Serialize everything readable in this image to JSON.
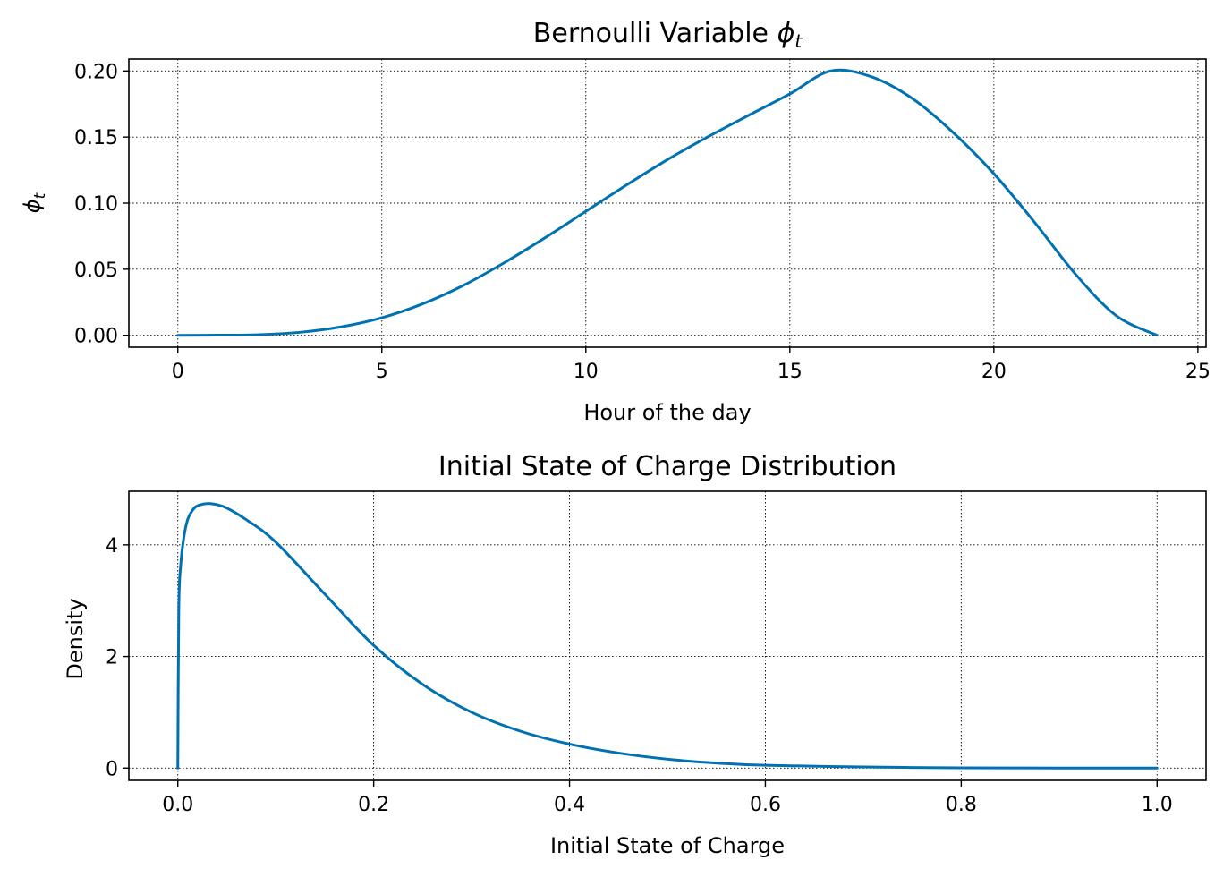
{
  "colors": {
    "line": "#0072b2"
  },
  "chart_data": [
    {
      "type": "line",
      "title_main": "Bernoulli Variable ",
      "title_symbol": "ϕ",
      "title_subscript": "t",
      "xlabel": "Hour of the day",
      "ylabel_symbol": "ϕ",
      "ylabel_subscript": "t",
      "xlim": [
        -1.2,
        25.2
      ],
      "ylim": [
        -0.009,
        0.209
      ],
      "xticks": [
        0,
        5,
        10,
        15,
        20,
        25
      ],
      "xtick_labels": [
        "0",
        "5",
        "10",
        "15",
        "20",
        "25"
      ],
      "yticks": [
        0.0,
        0.05,
        0.1,
        0.15,
        0.2
      ],
      "ytick_labels": [
        "0.00",
        "0.05",
        "0.10",
        "0.15",
        "0.20"
      ],
      "grid": true,
      "series": [
        {
          "x": [
            0,
            1,
            2,
            3,
            4,
            5,
            6,
            7,
            8,
            9,
            10,
            11,
            12,
            13,
            14,
            15,
            16,
            17,
            18,
            19,
            20,
            21,
            22,
            23,
            24
          ],
          "y": [
            0.0,
            0.0001,
            0.0005,
            0.0023,
            0.0064,
            0.0133,
            0.0238,
            0.0378,
            0.0549,
            0.0738,
            0.0938,
            0.1138,
            0.1329,
            0.1503,
            0.1666,
            0.1826,
            0.2,
            0.1956,
            0.1792,
            0.1535,
            0.1223,
            0.0854,
            0.0463,
            0.0148,
            0.0
          ]
        }
      ]
    },
    {
      "type": "line",
      "title": "Initial State of Charge Distribution",
      "xlabel": "Initial State of Charge",
      "ylabel": "Density",
      "xlim": [
        -0.05,
        1.05
      ],
      "ylim": [
        -0.22,
        4.96
      ],
      "xticks": [
        0.0,
        0.2,
        0.4,
        0.6,
        0.8,
        1.0
      ],
      "xtick_labels": [
        "0.0",
        "0.2",
        "0.4",
        "0.6",
        "0.8",
        "1.0"
      ],
      "yticks": [
        0,
        2,
        4
      ],
      "ytick_labels": [
        "0",
        "2",
        "4"
      ],
      "grid": true,
      "series": [
        {
          "x": [
            0.0,
            0.001,
            0.003,
            0.006,
            0.01,
            0.015,
            0.02,
            0.03,
            0.04,
            0.05,
            0.07,
            0.1,
            0.15,
            0.2,
            0.25,
            0.3,
            0.35,
            0.4,
            0.45,
            0.5,
            0.55,
            0.6,
            0.7,
            0.8,
            0.9,
            1.0
          ],
          "y": [
            0.0,
            2.85,
            3.65,
            4.12,
            4.45,
            4.62,
            4.7,
            4.74,
            4.72,
            4.66,
            4.45,
            4.05,
            3.12,
            2.2,
            1.5,
            1.0,
            0.66,
            0.43,
            0.27,
            0.16,
            0.09,
            0.05,
            0.02,
            0.005,
            0.001,
            0.0
          ]
        }
      ]
    }
  ]
}
